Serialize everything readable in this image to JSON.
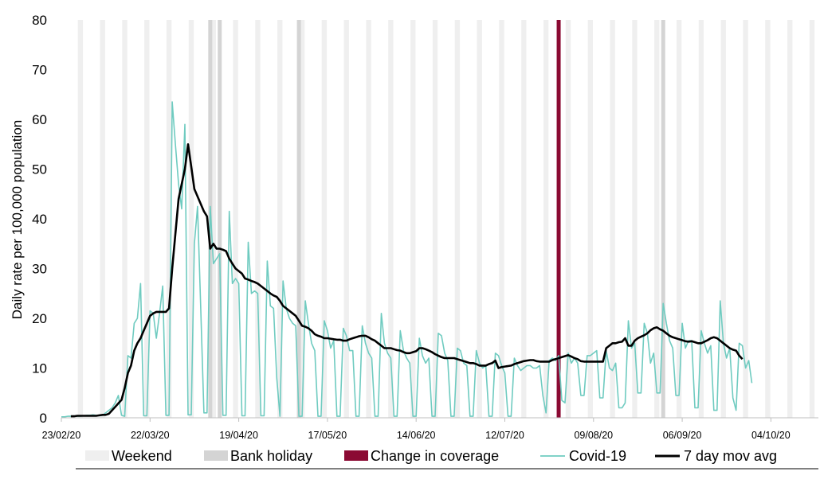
{
  "chart_data": {
    "type": "line",
    "title": "",
    "xlabel": "",
    "ylabel": "Daily rate per 100,000 population",
    "ylim": [
      0,
      80
    ],
    "yticks": [
      0,
      10,
      20,
      30,
      40,
      50,
      60,
      70,
      80
    ],
    "xrange": [
      "2020-02-23",
      "2020-10-19"
    ],
    "xticks": [
      {
        "date": "2020-02-23",
        "label": "23/02/20"
      },
      {
        "date": "2020-03-22",
        "label": "22/03/20"
      },
      {
        "date": "2020-04-19",
        "label": "19/04/20"
      },
      {
        "date": "2020-05-17",
        "label": "17/05/20"
      },
      {
        "date": "2020-06-14",
        "label": "14/06/20"
      },
      {
        "date": "2020-07-12",
        "label": "12/07/20"
      },
      {
        "date": "2020-08-09",
        "label": "09/08/20"
      },
      {
        "date": "2020-09-06",
        "label": "06/09/20"
      },
      {
        "date": "2020-10-04",
        "label": "04/10/20"
      }
    ],
    "grid": false,
    "legend_position": "bottom",
    "colors": {
      "weekend": "#efefef",
      "bank_holiday": "#d4d4d4",
      "coverage": "#8b0a33",
      "covid": "#6fcbc0",
      "moving_average": "#000000"
    },
    "legend": [
      {
        "key": "weekend",
        "label": "Weekend"
      },
      {
        "key": "bank_holiday",
        "label": "Bank holiday"
      },
      {
        "key": "coverage",
        "label": "Change in coverage"
      },
      {
        "key": "covid",
        "label": "Covid-19"
      },
      {
        "key": "moving_average",
        "label": "7 day mov avg"
      }
    ],
    "weekend_start": "2020-02-29",
    "bank_holidays": [
      "2020-04-10",
      "2020-04-13",
      "2020-05-08",
      "2020-08-31"
    ],
    "coverage_change": "2020-07-29",
    "series": [
      {
        "name": "Covid-19",
        "start": "2020-02-23",
        "values": [
          0.2,
          0.2,
          0.3,
          0.3,
          0.4,
          0.3,
          0.3,
          0.4,
          0.5,
          0.5,
          0.6,
          0.5,
          0.4,
          0.5,
          1.0,
          1.5,
          2.0,
          3.0,
          4.5,
          0.5,
          0.3,
          12.5,
          12.0,
          19.0,
          20.0,
          27.0,
          0.4,
          0.4,
          21.5,
          21.0,
          16.0,
          21.0,
          26.5,
          0.5,
          0.5,
          63.5,
          55.0,
          47.0,
          42.0,
          59.0,
          0.6,
          0.6,
          35.0,
          42.5,
          22.0,
          1.0,
          1.0,
          42.5,
          31.0,
          32.0,
          33.0,
          0.5,
          0.5,
          41.5,
          27.0,
          28.0,
          27.0,
          0.4,
          0.4,
          35.3,
          25.0,
          25.5,
          25.0,
          0.4,
          0.4,
          31.5,
          22.5,
          22.0,
          8.0,
          0.3,
          27.5,
          22.0,
          20.0,
          19.0,
          18.5,
          0.3,
          0.3,
          23.5,
          19.0,
          15.0,
          13.5,
          0.3,
          0.3,
          19.5,
          17.5,
          14.0,
          15.5,
          0.3,
          0.3,
          18.0,
          16.5,
          13.5,
          13.5,
          0.3,
          0.3,
          18.5,
          15.0,
          13.0,
          12.0,
          0.3,
          0.3,
          21.0,
          15.0,
          13.0,
          12.0,
          0.3,
          0.3,
          17.5,
          13.5,
          12.0,
          11.0,
          0.3,
          0.3,
          16.0,
          12.5,
          11.0,
          12.0,
          0.3,
          0.3,
          17.0,
          16.5,
          13.0,
          11.5,
          0.3,
          0.3,
          14.0,
          13.5,
          11.0,
          10.5,
          0.3,
          0.3,
          13.5,
          11.0,
          10.0,
          10.5,
          0.3,
          0.3,
          13.0,
          12.5,
          10.5,
          9.0,
          0.3,
          0.3,
          12.0,
          10.5,
          9.5,
          10.0,
          10.5,
          10.5,
          10.0,
          10.0,
          10.5,
          4.5,
          1.0,
          11.5,
          12.0,
          11.5,
          12.5,
          3.5,
          3.0,
          13.0,
          11.0,
          12.0,
          11.0,
          4.5,
          4.5,
          12.5,
          12.5,
          13.0,
          13.5,
          4.0,
          4.0,
          13.5,
          10.0,
          9.5,
          11.0,
          2.0,
          2.0,
          3.0,
          19.5,
          14.0,
          15.0,
          5.0,
          5.0,
          19.0,
          17.0,
          11.0,
          13.0,
          5.0,
          5.0,
          23.0,
          19.0,
          15.5,
          14.0,
          4.5,
          4.5,
          19.0,
          14.0,
          15.5,
          15.5,
          2.0,
          2.0,
          17.5,
          15.0,
          13.0,
          14.5,
          1.5,
          1.5,
          23.5,
          15.0,
          12.0,
          14.0,
          4.0,
          1.5,
          15.0,
          14.5,
          10.0,
          11.5,
          7.0
        ]
      },
      {
        "name": "7 day mov avg",
        "start": "2020-02-26",
        "values": [
          0.3,
          0.3,
          0.4,
          0.4,
          0.4,
          0.4,
          0.4,
          0.4,
          0.4,
          0.5,
          0.6,
          0.6,
          0.8,
          1.5,
          2.2,
          2.9,
          3.6,
          6.0,
          9.0,
          10.5,
          13.5,
          15.0,
          16.0,
          17.5,
          19.0,
          20.5,
          21.0,
          21.3,
          21.3,
          21.3,
          21.3,
          22.0,
          30.0,
          37.0,
          44.0,
          47.0,
          50.0,
          55.0,
          50.5,
          46.0,
          44.5,
          43.0,
          41.5,
          40.5,
          34.0,
          35.0,
          34.0,
          34.0,
          33.8,
          33.5,
          32.0,
          31.0,
          30.0,
          29.5,
          29.0,
          28.0,
          27.8,
          27.5,
          27.3,
          27.0,
          26.5,
          26.0,
          25.5,
          25.0,
          24.6,
          24.3,
          23.5,
          22.5,
          22.0,
          21.5,
          21.0,
          20.5,
          19.5,
          18.5,
          18.3,
          18.0,
          17.5,
          16.8,
          16.5,
          16.3,
          16.0,
          16.0,
          15.9,
          15.8,
          15.7,
          15.7,
          15.5,
          15.5,
          15.8,
          16.0,
          16.2,
          16.4,
          16.5,
          16.5,
          16.2,
          15.8,
          15.5,
          15.0,
          14.5,
          14.0,
          14.0,
          14.0,
          13.8,
          13.6,
          13.5,
          13.2,
          13.0,
          13.0,
          13.2,
          13.4,
          14.0,
          14.0,
          13.8,
          13.5,
          13.2,
          12.8,
          12.5,
          12.2,
          12.0,
          12.0,
          12.0,
          12.0,
          11.8,
          11.6,
          11.4,
          11.2,
          11.0,
          11.0,
          10.8,
          10.5,
          10.5,
          10.5,
          10.8,
          11.0,
          11.5,
          10.0,
          10.2,
          10.3,
          10.4,
          10.5,
          10.8,
          11.0,
          11.2,
          11.4,
          11.5,
          11.6,
          11.6,
          11.4,
          11.3,
          11.3,
          11.3,
          11.3,
          11.6,
          11.8,
          12.0,
          12.2,
          12.4,
          12.6,
          12.3,
          12.0,
          11.8,
          11.4,
          11.3,
          11.3,
          11.3,
          11.3,
          11.3,
          11.3,
          11.3,
          14.0,
          14.5,
          15.0,
          15.0,
          15.2,
          15.3,
          16.0,
          14.5,
          14.5,
          15.5,
          16.0,
          16.3,
          16.6,
          17.0,
          17.6,
          18.0,
          18.2,
          17.8,
          17.5,
          17.0,
          16.5,
          16.2,
          16.0,
          15.8,
          15.6,
          15.4,
          15.3,
          15.4,
          15.2,
          15.0,
          15.0,
          15.3,
          15.6,
          16.0,
          16.2,
          16.0,
          15.5,
          15.0,
          14.5,
          14.0,
          13.7,
          13.5,
          12.5,
          11.8
        ]
      }
    ]
  }
}
